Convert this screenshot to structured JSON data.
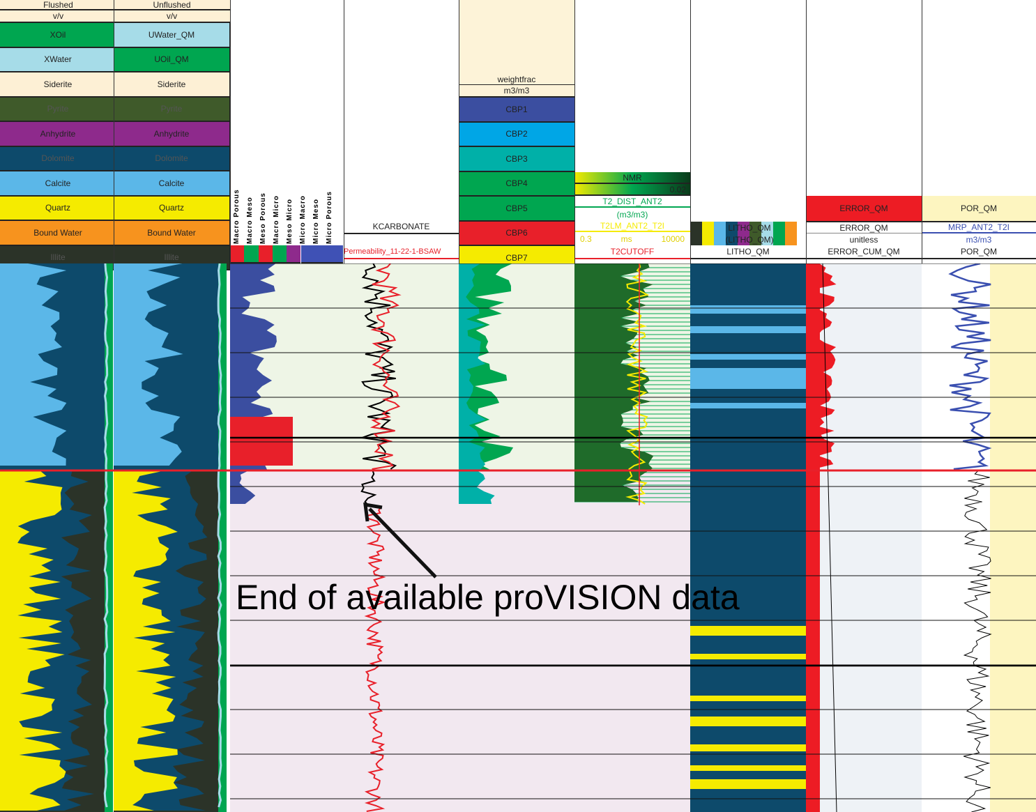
{
  "track1": {
    "title": "Flushed",
    "unit": "v/v",
    "legend": [
      "XOil",
      "XWater",
      "Siderite",
      "Pyrite",
      "Anhydrite",
      "Dolomite",
      "Calcite",
      "Quartz",
      "Bound Water",
      "Illite"
    ]
  },
  "track2": {
    "title": "Unflushed",
    "unit": "v/v",
    "legend": [
      "UWater_QM",
      "UOil_QM",
      "Siderite",
      "Pyrite",
      "Anhydrite",
      "Dolomite",
      "Calcite",
      "Quartz",
      "Bound Water",
      "Illite"
    ]
  },
  "track3": {
    "pore_types": [
      "Macro Porous",
      "Macro Meso",
      "Meso Porous",
      "Macro Micro",
      "Meso Micro",
      "Micro Macro",
      "Micro Meso",
      "Micro Porous"
    ]
  },
  "track4": {
    "curve1": "KCARBONATE",
    "curve2": "Permeability_11-22-1-BSAW"
  },
  "track5": {
    "title": "weightfrac",
    "unit": "m3/m3",
    "bins": [
      "CBP1",
      "CBP2",
      "CBP3",
      "CBP4",
      "CBP5",
      "CBP6",
      "CBP7"
    ]
  },
  "track6": {
    "nmr": "NMR",
    "nmr_max": "0.02",
    "dist": "T2_DIST_ANT2",
    "dist_unit": "(m3/m3)",
    "t2lm": "T2LM_ANT2_T2I",
    "t2_min": "0.3",
    "t2_unit": "ms",
    "t2_max": "10000",
    "cutoff": "T2CUTOFF"
  },
  "track7": {
    "litho1": "LITHO_QM",
    "litho2": "(LITHO_QM)",
    "litho_min": "0.5",
    "litho_max": "10",
    "name": "LITHO_QM"
  },
  "track8": {
    "title": "ERROR_QM",
    "curve": "ERROR_QM",
    "unit": "unitless",
    "cum": "ERROR_CUM_QM"
  },
  "track9": {
    "title": "POR_QM",
    "curve": "MRP_ANT2_T2I",
    "unit": "m3/m3",
    "name": "POR_QM"
  },
  "annotation": "End of available proVISION data",
  "colors": {
    "oil": "#00a650",
    "water": "#a6dce8",
    "siderite": "#fdf0d5",
    "pyrite": "#3f5a2a",
    "anhydrite": "#8e2a8c",
    "dolomite": "#0d4a6b",
    "calcite": "#5bb7e8",
    "quartz": "#f5eb00",
    "bound_water": "#f7931e",
    "illite": "#2b3328",
    "marker": "#e8202a"
  }
}
